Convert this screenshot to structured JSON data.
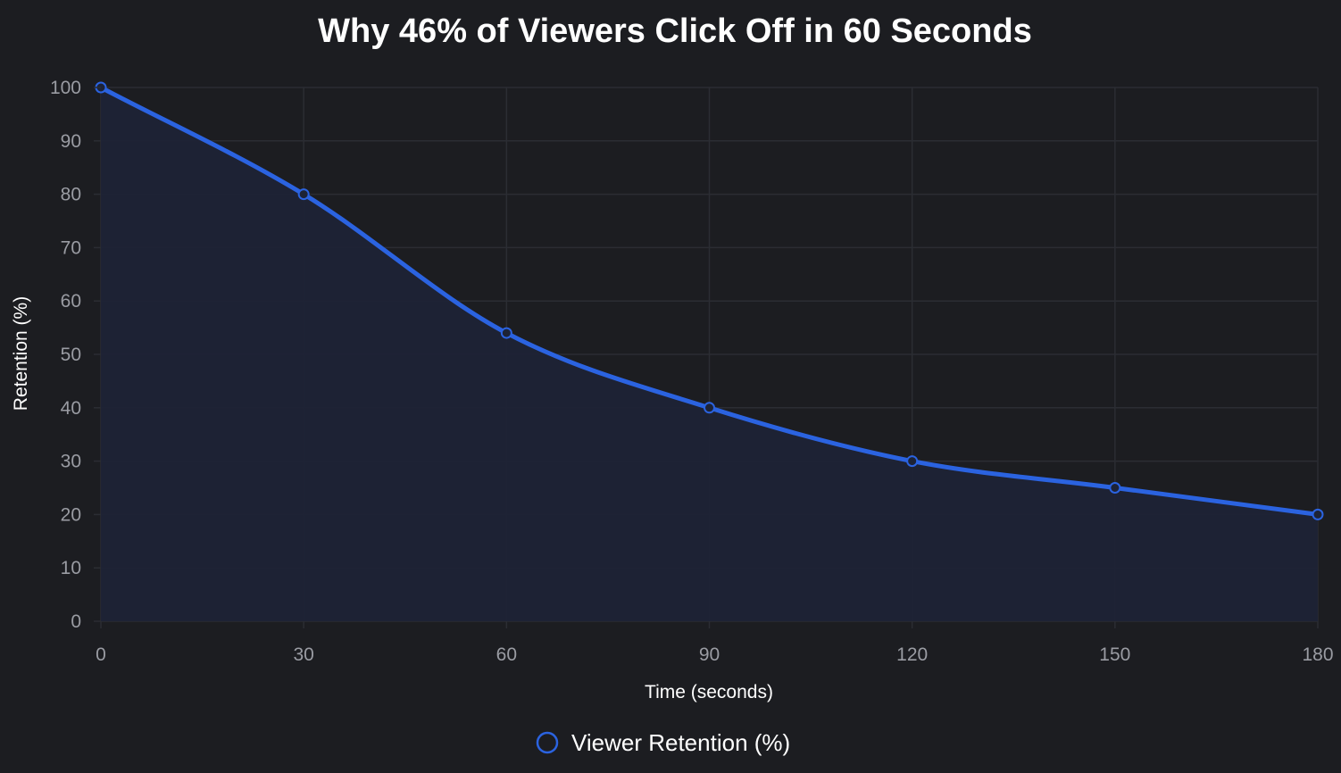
{
  "chart_data": {
    "type": "line",
    "title": "Why 46% of Viewers Click Off in 60 Seconds",
    "xlabel": "Time (seconds)",
    "ylabel": "Retention (%)",
    "x": [
      0,
      30,
      60,
      90,
      120,
      150,
      180
    ],
    "series": [
      {
        "name": "Viewer Retention (%)",
        "values": [
          100,
          80,
          54,
          40,
          30,
          25,
          20
        ]
      }
    ],
    "xlim": [
      0,
      180
    ],
    "ylim": [
      0,
      100
    ],
    "xticks": [
      0,
      30,
      60,
      90,
      120,
      150,
      180
    ],
    "yticks": [
      0,
      10,
      20,
      30,
      40,
      50,
      60,
      70,
      80,
      90,
      100
    ],
    "grid": true,
    "filled": true,
    "smooth": true,
    "legend_position": "bottom-center",
    "colors": {
      "background": "#1c1d21",
      "line": "#2b63e0",
      "fill": "#1d2336",
      "grid": "#2b2d33"
    }
  }
}
